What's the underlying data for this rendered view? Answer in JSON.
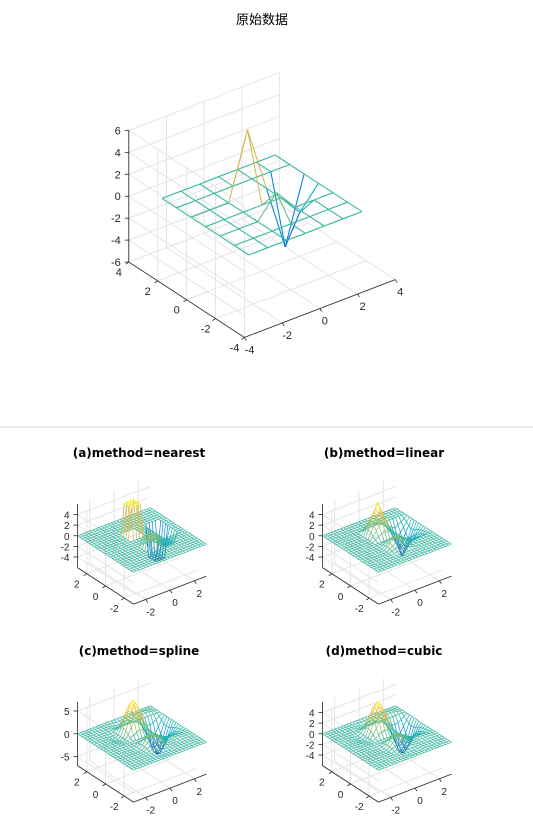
{
  "chart_data": [
    {
      "type": "mesh3d",
      "title": "原始数据",
      "x": [
        -3,
        -2,
        -1,
        0,
        1,
        2,
        3
      ],
      "y": [
        -3,
        -2,
        -1,
        0,
        1,
        2,
        3
      ],
      "z": [
        [
          0,
          0,
          0,
          0,
          0,
          0,
          0
        ],
        [
          0,
          0,
          0,
          0,
          0,
          0,
          0
        ],
        [
          0,
          0,
          0,
          2,
          0,
          0,
          0
        ],
        [
          0,
          0,
          0,
          0,
          0,
          -2,
          0
        ],
        [
          0,
          0,
          0,
          6,
          0,
          -6,
          0
        ],
        [
          0,
          0,
          0,
          0,
          0,
          0,
          0
        ],
        [
          0,
          0,
          0,
          0,
          0,
          0,
          0
        ]
      ],
      "xlim": [
        -4,
        4
      ],
      "ylim": [
        -4,
        4
      ],
      "zlim": [
        -6,
        6
      ],
      "xticks": [
        -4,
        -2,
        0,
        2,
        4
      ],
      "yticks": [
        -4,
        -2,
        0,
        2,
        4
      ],
      "zticks": [
        -6,
        -4,
        -2,
        0,
        2,
        4,
        6
      ],
      "grid": true,
      "colormap": "parula"
    },
    {
      "type": "mesh3d",
      "title": "(a)method=nearest",
      "method": "nearest",
      "xlim": [
        -3,
        3
      ],
      "ylim": [
        -3,
        3
      ],
      "zlim": [
        -6,
        6
      ],
      "xticks": [
        -2,
        0,
        2
      ],
      "yticks": [
        -2,
        0,
        2
      ],
      "zticks": [
        -4,
        -2,
        0,
        2,
        4
      ],
      "grid": true,
      "colormap": "parula"
    },
    {
      "type": "mesh3d",
      "title": "(b)method=linear",
      "method": "linear",
      "xlim": [
        -3,
        3
      ],
      "ylim": [
        -3,
        3
      ],
      "zlim": [
        -6,
        6
      ],
      "xticks": [
        -2,
        0,
        2
      ],
      "yticks": [
        -2,
        0,
        2
      ],
      "zticks": [
        -4,
        -2,
        0,
        2,
        4
      ],
      "grid": true,
      "colormap": "parula"
    },
    {
      "type": "mesh3d",
      "title": "(c)method=spline",
      "method": "spline",
      "xlim": [
        -3,
        3
      ],
      "ylim": [
        -3,
        3
      ],
      "zlim": [
        -7,
        7
      ],
      "xticks": [
        -2,
        0,
        2
      ],
      "yticks": [
        -2,
        0,
        2
      ],
      "zticks": [
        -5,
        0,
        5
      ],
      "grid": true,
      "colormap": "parula"
    },
    {
      "type": "mesh3d",
      "title": "(d)method=cubic",
      "method": "cubic",
      "xlim": [
        -3,
        3
      ],
      "ylim": [
        -3,
        3
      ],
      "zlim": [
        -6,
        6
      ],
      "xticks": [
        -2,
        0,
        2
      ],
      "yticks": [
        -2,
        0,
        2
      ],
      "zticks": [
        -4,
        -2,
        0,
        2,
        4
      ],
      "grid": true,
      "colormap": "parula"
    }
  ]
}
